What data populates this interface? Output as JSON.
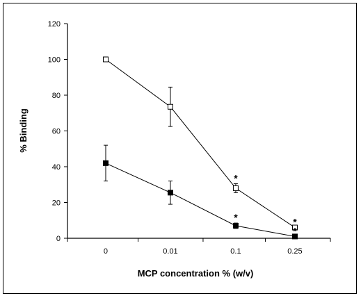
{
  "chart_data": {
    "type": "line",
    "title": "",
    "xlabel": "MCP concentration % (w/v)",
    "ylabel": "% Binding",
    "categories": [
      "0",
      "0.01",
      "0.1",
      "0.25"
    ],
    "ylim": [
      0,
      120
    ],
    "yticks": [
      0,
      20,
      40,
      60,
      80,
      100,
      120
    ],
    "grid": false,
    "legend": "none",
    "series": [
      {
        "marker": "open-square",
        "values": [
          100,
          73.5,
          28,
          6
        ],
        "errors": [
          null,
          11,
          2.5,
          null
        ],
        "significant": [
          false,
          false,
          true,
          true
        ]
      },
      {
        "marker": "filled-square",
        "values": [
          42,
          25.5,
          7,
          1
        ],
        "errors": [
          10,
          6.5,
          1.5,
          null
        ],
        "significant": [
          false,
          false,
          true,
          true
        ]
      }
    ],
    "annotation_symbol": "*"
  }
}
